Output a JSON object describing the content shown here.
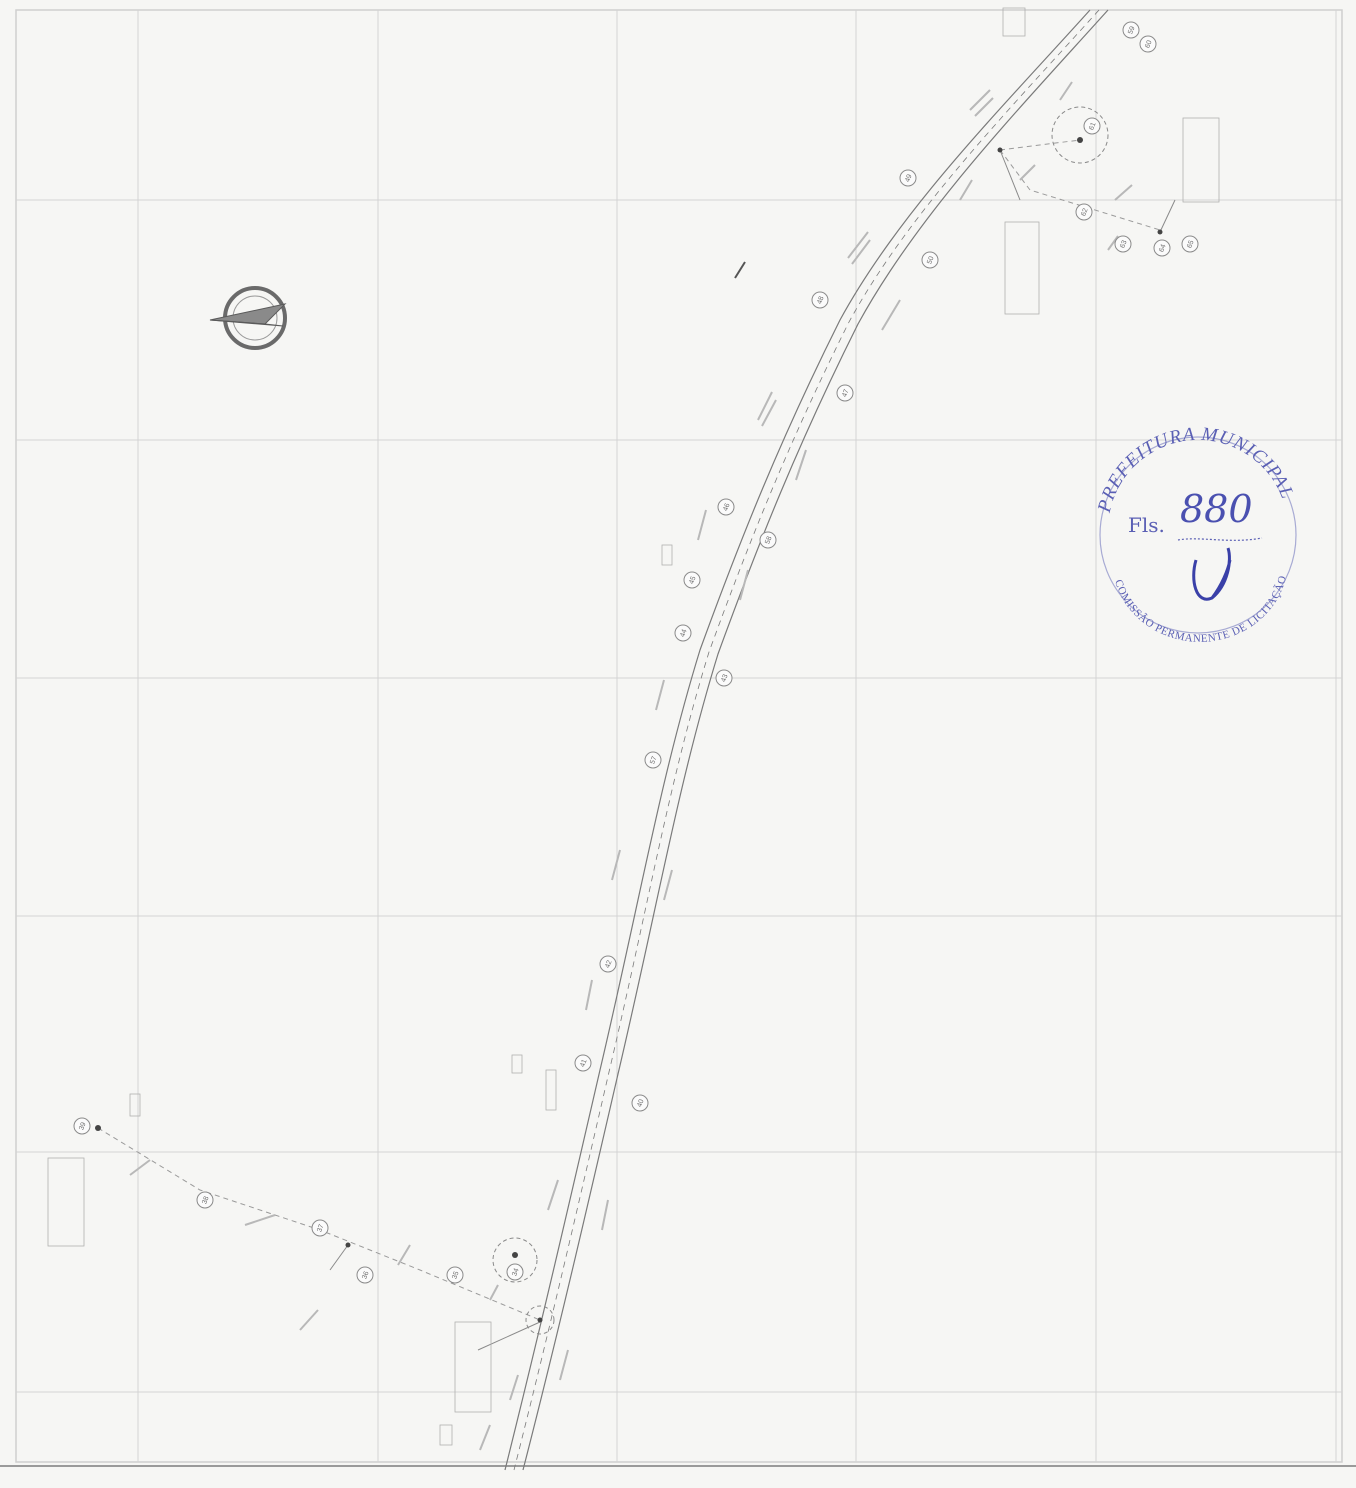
{
  "document": {
    "page_number_handwritten": "880",
    "page_prefix": "Fls."
  },
  "stamp": {
    "top_text": "PREFEITURA MUNICIPAL",
    "bottom_text": "COMISSÃO PERMANENTE DE LICITAÇÃO",
    "color": "#5a5fb4"
  },
  "colors": {
    "grid": "#d4d4d4",
    "road": "#7a7a7a",
    "marker": "#8a8a8a",
    "paper": "#f6f6f4"
  },
  "points": [
    {
      "id": "wp-59",
      "label": "59"
    },
    {
      "id": "wp-60",
      "label": "60"
    },
    {
      "id": "wp-61",
      "label": "61"
    },
    {
      "id": "wp-62",
      "label": "62"
    },
    {
      "id": "wp-63",
      "label": "63"
    },
    {
      "id": "wp-64",
      "label": "64"
    },
    {
      "id": "wp-65",
      "label": "65"
    },
    {
      "id": "wp-49",
      "label": "49"
    },
    {
      "id": "wp-50",
      "label": "50"
    },
    {
      "id": "wp-48",
      "label": "48"
    },
    {
      "id": "wp-47",
      "label": "47"
    },
    {
      "id": "wp-46",
      "label": "46"
    },
    {
      "id": "wp-58",
      "label": "58"
    },
    {
      "id": "wp-45",
      "label": "45"
    },
    {
      "id": "wp-44",
      "label": "44"
    },
    {
      "id": "wp-43",
      "label": "43"
    },
    {
      "id": "wp-57",
      "label": "57"
    },
    {
      "id": "wp-42",
      "label": "42"
    },
    {
      "id": "wp-41",
      "label": "41"
    },
    {
      "id": "wp-40",
      "label": "40"
    },
    {
      "id": "wp-39",
      "label": "39"
    },
    {
      "id": "wp-38",
      "label": "38"
    },
    {
      "id": "wp-37",
      "label": "37"
    },
    {
      "id": "wp-36",
      "label": "36"
    },
    {
      "id": "wp-35",
      "label": "35"
    },
    {
      "id": "wp-34",
      "label": "34"
    }
  ]
}
